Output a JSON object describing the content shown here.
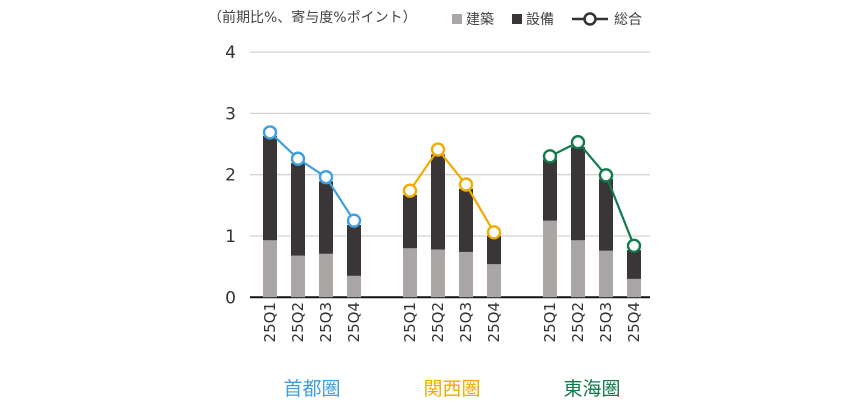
{
  "chart_data": {
    "type": "bar",
    "stacked": true,
    "note": "（前期比%、寄与度%ポイント）",
    "legend": [
      {
        "name": "建築",
        "color": "#aaa6a6",
        "kind": "bar"
      },
      {
        "name": "設備",
        "color": "#3a3536",
        "kind": "bar"
      },
      {
        "name": "総合",
        "color": "#333333",
        "kind": "line"
      }
    ],
    "legend_placement": "top-right",
    "ylim": [
      0,
      4
    ],
    "yticks": [
      "0",
      "1",
      "2",
      "3",
      "4"
    ],
    "grid": true,
    "categories": [
      "25Q1",
      "25Q2",
      "25Q3",
      "25Q4"
    ],
    "groups": [
      {
        "name": "首都圏",
        "color": "#3ea0dc",
        "建築": [
          0.93,
          0.68,
          0.71,
          0.35
        ],
        "設備": [
          1.7,
          1.51,
          1.18,
          0.83
        ],
        "総合": [
          2.69,
          2.26,
          1.96,
          1.25
        ]
      },
      {
        "name": "関西圏",
        "color": "#f2aa00",
        "建築": [
          0.8,
          0.78,
          0.74,
          0.54
        ],
        "設備": [
          0.87,
          1.55,
          1.03,
          0.46
        ],
        "総合": [
          1.74,
          2.41,
          1.84,
          1.06
        ]
      },
      {
        "name": "東海圏",
        "color": "#127a4c",
        "建築": [
          1.25,
          0.93,
          0.76,
          0.3
        ],
        "設備": [
          1.0,
          1.52,
          1.17,
          0.47
        ],
        "総合": [
          2.3,
          2.53,
          1.99,
          0.84
        ]
      }
    ]
  }
}
